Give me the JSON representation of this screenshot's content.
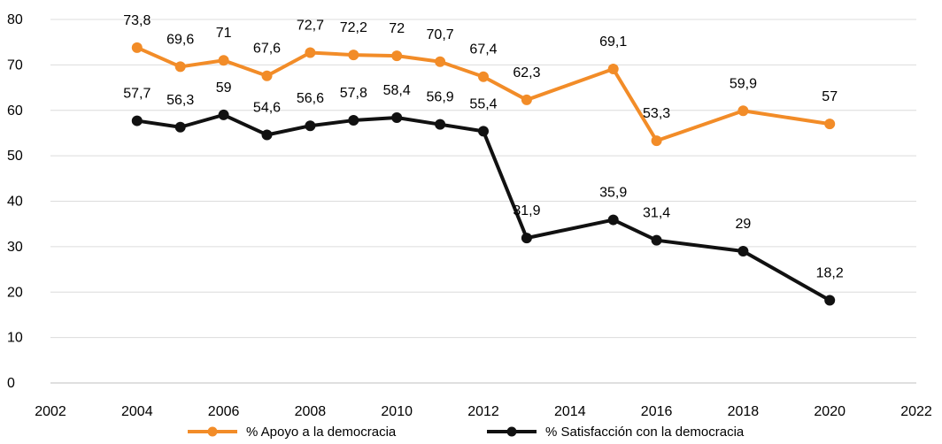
{
  "chart_data": {
    "type": "line",
    "title": "",
    "xlabel": "",
    "ylabel": "",
    "xlim": [
      2002,
      2022
    ],
    "ylim": [
      0,
      80
    ],
    "x_ticks": [
      "2002",
      "2004",
      "2006",
      "2008",
      "2010",
      "2012",
      "2014",
      "2016",
      "2018",
      "2020",
      "2022"
    ],
    "y_ticks": [
      "0",
      "10",
      "20",
      "30",
      "40",
      "50",
      "60",
      "70",
      "80"
    ],
    "grid": true,
    "legend_position": "bottom-center",
    "series": [
      {
        "name": "% Apoyo a la democracia",
        "color": "#f28c28",
        "x": [
          2004,
          2005,
          2006,
          2007,
          2008,
          2009,
          2010,
          2011,
          2012,
          2013,
          2015,
          2016,
          2018,
          2020
        ],
        "values": [
          73.8,
          69.6,
          71,
          67.6,
          72.7,
          72.2,
          72,
          70.7,
          67.4,
          62.3,
          69.1,
          53.3,
          59.9,
          57
        ],
        "labels": [
          "73,8",
          "69,6",
          "71",
          "67,6",
          "72,7",
          "72,2",
          "72",
          "70,7",
          "67,4",
          "62,3",
          "69,1",
          "53,3",
          "59,9",
          "57"
        ]
      },
      {
        "name": "% Satisfacción con la democracia",
        "color": "#111111",
        "x": [
          2004,
          2005,
          2006,
          2007,
          2008,
          2009,
          2010,
          2011,
          2012,
          2013,
          2015,
          2016,
          2018,
          2020
        ],
        "values": [
          57.7,
          56.3,
          59,
          54.6,
          56.6,
          57.8,
          58.4,
          56.9,
          55.4,
          31.9,
          35.9,
          31.4,
          29,
          18.2
        ],
        "labels": [
          "57,7",
          "56,3",
          "59",
          "54,6",
          "56,6",
          "57,8",
          "58,4",
          "56,9",
          "55,4",
          "31,9",
          "35,9",
          "31,4",
          "29",
          "18,2"
        ]
      }
    ]
  }
}
